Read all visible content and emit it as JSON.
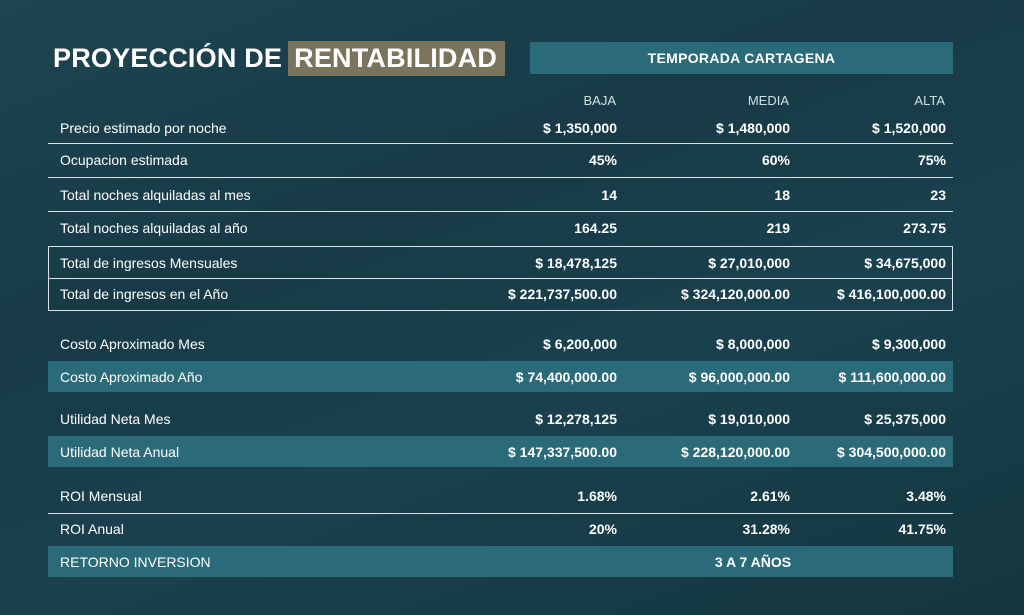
{
  "title": {
    "part1": "PROYECCIÓN DE",
    "part2": "RENTABILIDAD"
  },
  "season": "TEMPORADA CARTAGENA",
  "columns": [
    "BAJA",
    "MEDIA",
    "ALTA"
  ],
  "rows": [
    {
      "label": "Precio estimado por noche",
      "baja": "$ 1,350,000",
      "media": "$ 1,480,000",
      "alta": "$ 1,520,000"
    },
    {
      "label": "Ocupacion estimada",
      "baja": "45%",
      "media": "60%",
      "alta": "75%"
    },
    {
      "label": "Total noches alquiladas al mes",
      "baja": "14",
      "media": "18",
      "alta": "23"
    },
    {
      "label": "Total noches alquiladas al año",
      "baja": "164.25",
      "media": "219",
      "alta": "273.75"
    },
    {
      "label": "Total de ingresos Mensuales",
      "baja": "$ 18,478,125",
      "media": "$ 27,010,000",
      "alta": "$ 34,675,000"
    },
    {
      "label": "Total de ingresos en el Año",
      "baja": "$ 221,737,500.00",
      "media": "$ 324,120,000.00",
      "alta": "$ 416,100,000.00"
    },
    {
      "label": "Costo Aproximado Mes",
      "baja": "$ 6,200,000",
      "media": "$ 8,000,000",
      "alta": "$ 9,300,000"
    },
    {
      "label": "Costo Aproximado Año",
      "baja": "$ 74,400,000.00",
      "media": "$ 96,000,000.00",
      "alta": "$ 111,600,000.00"
    },
    {
      "label": "Utilidad Neta Mes",
      "baja": "$ 12,278,125",
      "media": "$ 19,010,000",
      "alta": "$ 25,375,000"
    },
    {
      "label": "Utilidad Neta Anual",
      "baja": "$ 147,337,500.00",
      "media": "$ 228,120,000.00",
      "alta": "$ 304,500,000.00"
    },
    {
      "label": "ROI Mensual",
      "baja": "1.68%",
      "media": "2.61%",
      "alta": "3.48%"
    },
    {
      "label": "ROI Anual",
      "baja": "20%",
      "media": "31.28%",
      "alta": "41.75%"
    }
  ],
  "retorno": {
    "label": "RETORNO INVERSION",
    "value": "3 A 7 AÑOS"
  }
}
